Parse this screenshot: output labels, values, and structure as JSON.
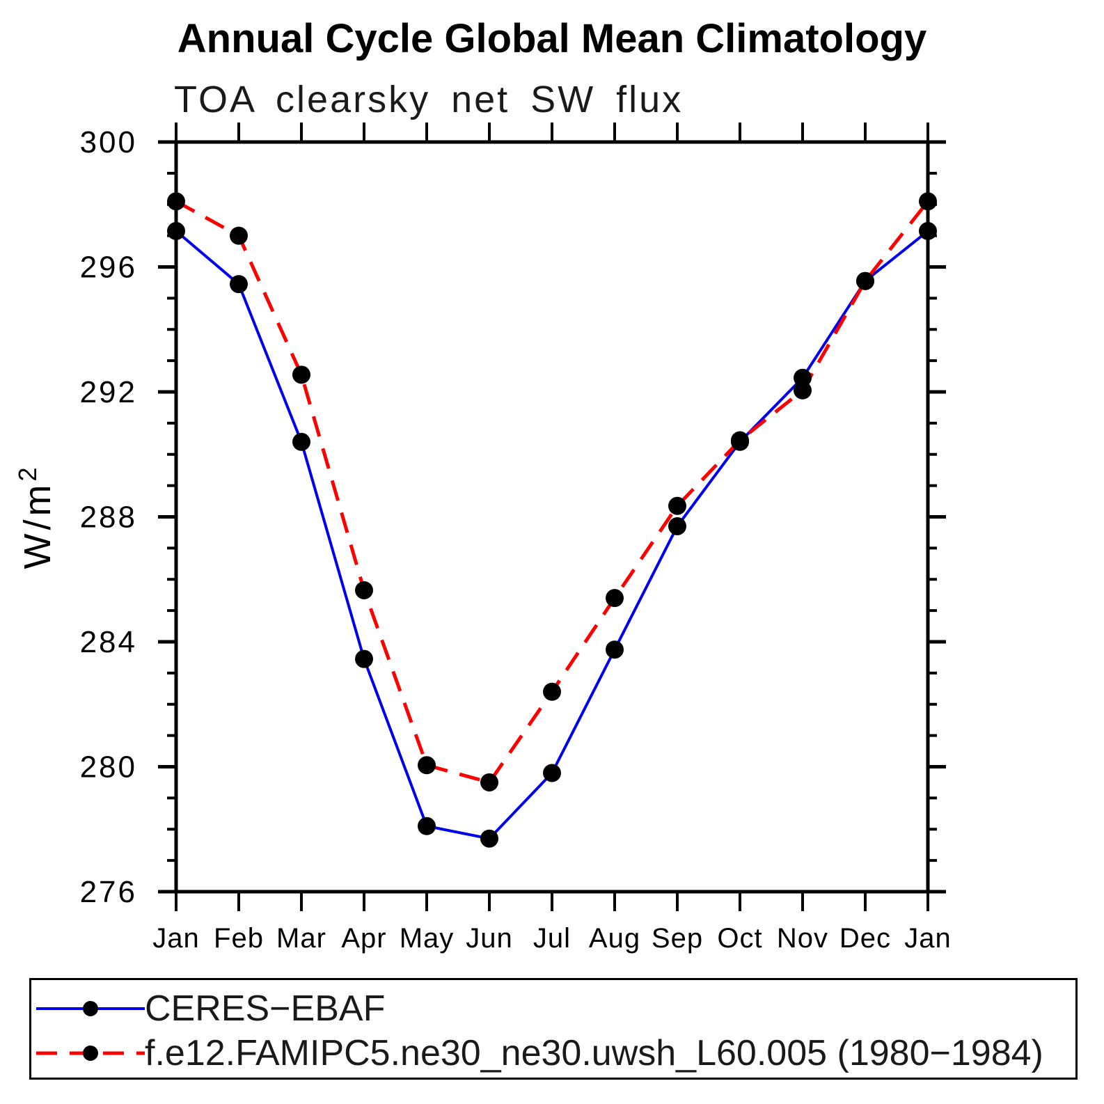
{
  "title": "Annual Cycle Global Mean Climatology",
  "subtitle": "TOA clearsky net SW flux",
  "y_axis_title": "W/m",
  "y_axis_title_exponent": "2",
  "colors": {
    "ceres_line": "#0000ee",
    "model_line": "#ff0000",
    "marker": "#000000",
    "axis": "#000000",
    "background": "#ffffff"
  },
  "chart_data": {
    "type": "line",
    "title": "Annual Cycle Global Mean Climatology",
    "subtitle": "TOA clearsky net SW flux",
    "ylabel": "W/m2",
    "xlabel": "",
    "grid": false,
    "legend_position": "bottom",
    "ylim": [
      276,
      300
    ],
    "y_ticks": [
      276,
      280,
      284,
      288,
      292,
      296,
      300
    ],
    "y_minor_step": 1,
    "x_labels": [
      "Jan",
      "Feb",
      "Mar",
      "Apr",
      "May",
      "Jun",
      "Jul",
      "Aug",
      "Sep",
      "Oct",
      "Nov",
      "Dec",
      "Jan"
    ],
    "series": [
      {
        "name": "CERES−EBAF",
        "style": "solid",
        "color": "#0000ee",
        "marker_color": "#000000",
        "values": [
          297.15,
          295.45,
          290.4,
          283.45,
          278.1,
          277.7,
          279.8,
          283.75,
          287.7,
          290.4,
          292.45,
          295.55,
          297.15
        ]
      },
      {
        "name": "f.e12.FAMIPC5.ne30_ne30.uwsh_L60.005 (1980−1984)",
        "style": "dashed",
        "color": "#ff0000",
        "marker_color": "#000000",
        "values": [
          298.1,
          297.0,
          292.55,
          285.65,
          280.05,
          279.5,
          282.4,
          285.4,
          288.35,
          290.45,
          292.05,
          295.55,
          298.1
        ]
      }
    ]
  }
}
